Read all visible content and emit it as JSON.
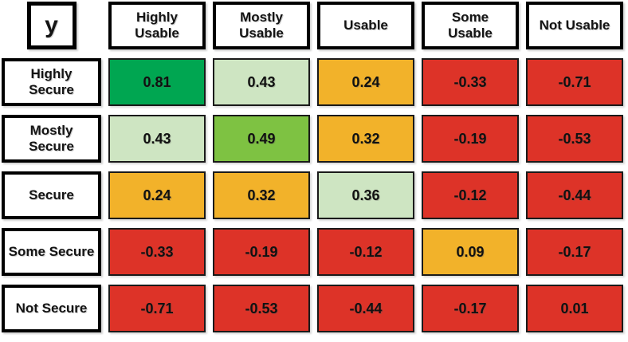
{
  "corner_label": "y",
  "palette": {
    "strong_green": "#00A651",
    "medium_green": "#7EC242",
    "light_green": "#CEE5C2",
    "orange": "#F2B22A",
    "red": "#DD3328",
    "header_border": "#000000",
    "cell_border": "#1a1a1a"
  },
  "chart_data": {
    "type": "heatmap",
    "title": "",
    "corner_label": "y",
    "x_categories": [
      "Highly Usable",
      "Mostly Usable",
      "Usable",
      "Some Usable",
      "Not Usable"
    ],
    "y_categories": [
      "Highly Secure",
      "Mostly Secure",
      "Secure",
      "Some Secure",
      "Not Secure"
    ],
    "values": [
      [
        0.81,
        0.43,
        0.24,
        -0.33,
        -0.71
      ],
      [
        0.43,
        0.49,
        0.32,
        -0.19,
        -0.53
      ],
      [
        0.24,
        0.32,
        0.36,
        -0.12,
        -0.44
      ],
      [
        -0.33,
        -0.19,
        -0.12,
        0.09,
        -0.17
      ],
      [
        -0.71,
        -0.53,
        -0.44,
        -0.17,
        0.01
      ]
    ],
    "display": [
      [
        "0.81",
        "0.43",
        "0.24",
        "-0.33",
        "-0.71"
      ],
      [
        "0.43",
        "0.49",
        "0.32",
        "-0.19",
        "-0.53"
      ],
      [
        "0.24",
        "0.32",
        "0.36",
        "-0.12",
        "-0.44"
      ],
      [
        "-0.33",
        "-0.19",
        "-0.12",
        "0.09",
        "-0.17"
      ],
      [
        "-0.71",
        "-0.53",
        "-0.44",
        "-0.17",
        "0.01"
      ]
    ],
    "cell_colors": [
      [
        "strong_green",
        "light_green",
        "orange",
        "red",
        "red"
      ],
      [
        "light_green",
        "medium_green",
        "orange",
        "red",
        "red"
      ],
      [
        "orange",
        "orange",
        "light_green",
        "red",
        "red"
      ],
      [
        "red",
        "red",
        "red",
        "orange",
        "red"
      ],
      [
        "red",
        "red",
        "red",
        "red",
        "red"
      ]
    ],
    "legend_position": "none",
    "grid": false
  }
}
